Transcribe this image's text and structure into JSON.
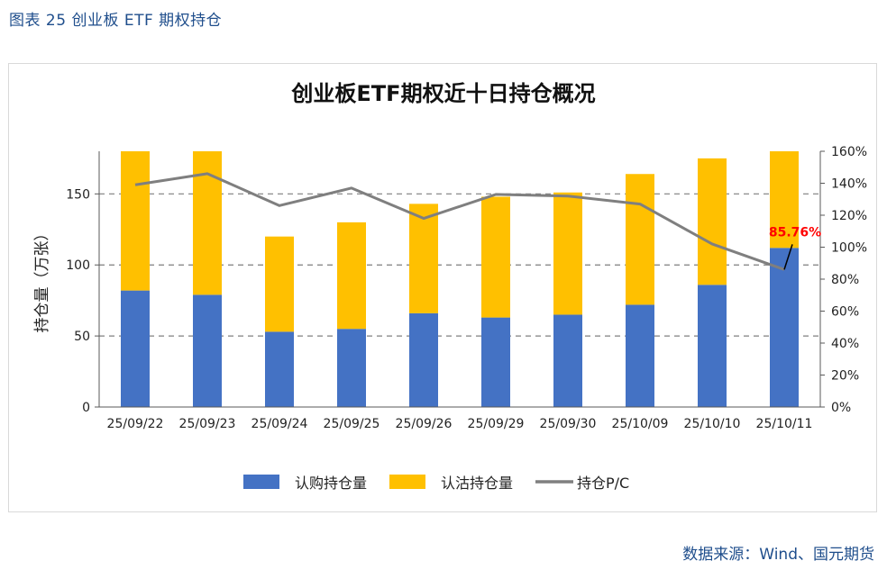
{
  "figure_title": "图表 25 创业板 ETF 期权持仓",
  "source": "数据来源：Wind、国元期货",
  "chart_data": {
    "type": "bar",
    "title": "创业板ETF期权近十日持仓概况",
    "ylabel": "持仓量（万张）",
    "ylim": [
      0,
      180
    ],
    "y_ticks": [
      0,
      50,
      100,
      150
    ],
    "y2lim": [
      0,
      160
    ],
    "y2_ticks": [
      "0%",
      "20%",
      "40%",
      "60%",
      "80%",
      "100%",
      "120%",
      "140%",
      "160%"
    ],
    "categories": [
      "25/09/22",
      "25/09/23",
      "25/09/24",
      "25/09/25",
      "25/09/26",
      "25/09/29",
      "25/09/30",
      "25/10/09",
      "25/10/10",
      "25/10/11"
    ],
    "series": [
      {
        "name": "认购持仓量",
        "kind": "bar",
        "color": "#4472c4",
        "values": [
          82,
          79,
          53,
          55,
          66,
          63,
          65,
          72,
          86,
          112
        ]
      },
      {
        "name": "认沽持仓量",
        "kind": "bar",
        "color": "#ffc000",
        "values": [
          98,
          101,
          67,
          75,
          77,
          85,
          86,
          92,
          89,
          68
        ]
      },
      {
        "name": "持仓P/C",
        "kind": "line",
        "color": "#7f7f7f",
        "axis": "right",
        "values": [
          139,
          146,
          126,
          137,
          118,
          133,
          132,
          127,
          102,
          86
        ]
      }
    ],
    "annotation": {
      "text": "85.76%",
      "color": "#ff0000"
    }
  }
}
